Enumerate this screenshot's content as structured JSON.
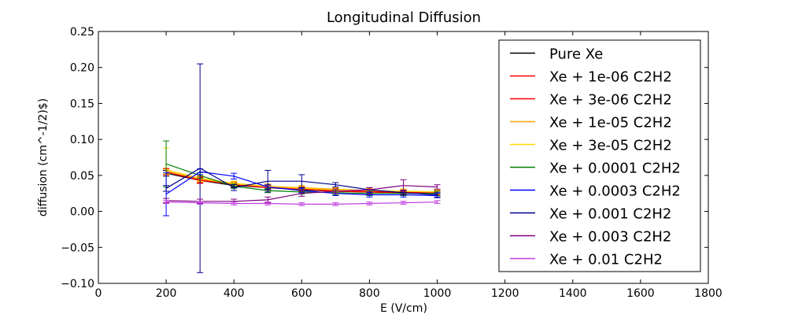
{
  "chart_data": {
    "type": "line",
    "title": "Longitudinal Diffusion",
    "xlabel": "E (V/cm)",
    "ylabel": "diffusion (cm^-1/2)$)",
    "xlim": [
      0,
      1800
    ],
    "ylim": [
      -0.1,
      0.25
    ],
    "x_ticks": [
      "0",
      "200",
      "400",
      "600",
      "800",
      "1000",
      "1200",
      "1400",
      "1600",
      "1800"
    ],
    "y_ticks": [
      "−0.10",
      "−0.05",
      "0.00",
      "0.05",
      "0.10",
      "0.15",
      "0.20",
      "0.25"
    ],
    "grid": false,
    "legend_position": "top-right",
    "x": [
      200,
      300,
      400,
      500,
      600,
      700,
      800,
      900,
      1000
    ],
    "series": [
      {
        "name": "Pure Xe",
        "color": "#000000",
        "values": [
          0.053,
          0.043,
          0.036,
          0.033,
          0.03,
          0.028,
          0.027,
          0.026,
          0.025
        ],
        "errors": [
          0.004,
          0.004,
          0.003,
          0.003,
          0.003,
          0.003,
          0.003,
          0.003,
          0.003
        ]
      },
      {
        "name": "Xe + 1e-06 C2H2",
        "color": "#ff0000",
        "values": [
          0.056,
          0.044,
          0.037,
          0.033,
          0.031,
          0.028,
          0.027,
          0.026,
          0.025
        ],
        "errors": [
          0.004,
          0.004,
          0.003,
          0.003,
          0.003,
          0.003,
          0.003,
          0.003,
          0.003
        ]
      },
      {
        "name": "Xe + 3e-06 C2H2",
        "color": "#ff0000",
        "values": [
          0.055,
          0.043,
          0.038,
          0.035,
          0.031,
          0.029,
          0.028,
          0.027,
          0.026
        ],
        "errors": [
          0.004,
          0.004,
          0.003,
          0.003,
          0.003,
          0.003,
          0.003,
          0.003,
          0.003
        ]
      },
      {
        "name": "Xe + 1e-05 C2H2",
        "color": "#ffa500",
        "values": [
          0.056,
          0.045,
          0.038,
          0.035,
          0.033,
          0.031,
          0.029,
          0.028,
          0.027
        ],
        "errors": [
          0.004,
          0.004,
          0.003,
          0.003,
          0.003,
          0.003,
          0.003,
          0.003,
          0.003
        ]
      },
      {
        "name": "Xe + 3e-05 C2H2",
        "color": "#ffd700",
        "values": [
          0.058,
          0.046,
          0.039,
          0.035,
          0.032,
          0.03,
          0.029,
          0.028,
          0.027
        ],
        "errors": [
          0.03,
          0.004,
          0.003,
          0.003,
          0.003,
          0.003,
          0.003,
          0.003,
          0.003
        ]
      },
      {
        "name": "Xe + 0.0001 C2H2",
        "color": "#008000",
        "values": [
          0.066,
          0.05,
          0.035,
          0.029,
          0.027,
          0.026,
          0.025,
          0.025,
          0.025
        ],
        "errors": [
          0.032,
          0.004,
          0.003,
          0.003,
          0.003,
          0.003,
          0.003,
          0.003,
          0.003
        ]
      },
      {
        "name": "Xe + 0.0003 C2H2",
        "color": "#0000ff",
        "values": [
          0.024,
          0.055,
          0.049,
          0.034,
          0.029,
          0.025,
          0.023,
          0.023,
          0.022
        ],
        "errors": [
          0.03,
          0.004,
          0.004,
          0.003,
          0.003,
          0.003,
          0.003,
          0.003,
          0.003
        ]
      },
      {
        "name": "Xe + 0.001 C2H2",
        "color": "#00008b",
        "values": [
          0.032,
          0.06,
          0.033,
          0.042,
          0.042,
          0.037,
          0.03,
          0.026,
          0.023
        ],
        "errors": [
          0.004,
          0.145,
          0.004,
          0.015,
          0.009,
          0.003,
          0.003,
          0.003,
          0.003
        ]
      },
      {
        "name": "Xe + 0.003 C2H2",
        "color": "#800080",
        "values": [
          0.015,
          0.014,
          0.014,
          0.016,
          0.025,
          0.028,
          0.03,
          0.036,
          0.034
        ],
        "errors": [
          0.003,
          0.003,
          0.003,
          0.004,
          0.004,
          0.003,
          0.003,
          0.008,
          0.003
        ]
      },
      {
        "name": "Xe + 0.01 C2H2",
        "color": "#bf3fdf",
        "values": [
          0.013,
          0.012,
          0.011,
          0.011,
          0.01,
          0.01,
          0.011,
          0.012,
          0.013
        ],
        "errors": [
          0.002,
          0.002,
          0.002,
          0.002,
          0.002,
          0.002,
          0.002,
          0.002,
          0.002
        ]
      }
    ]
  }
}
